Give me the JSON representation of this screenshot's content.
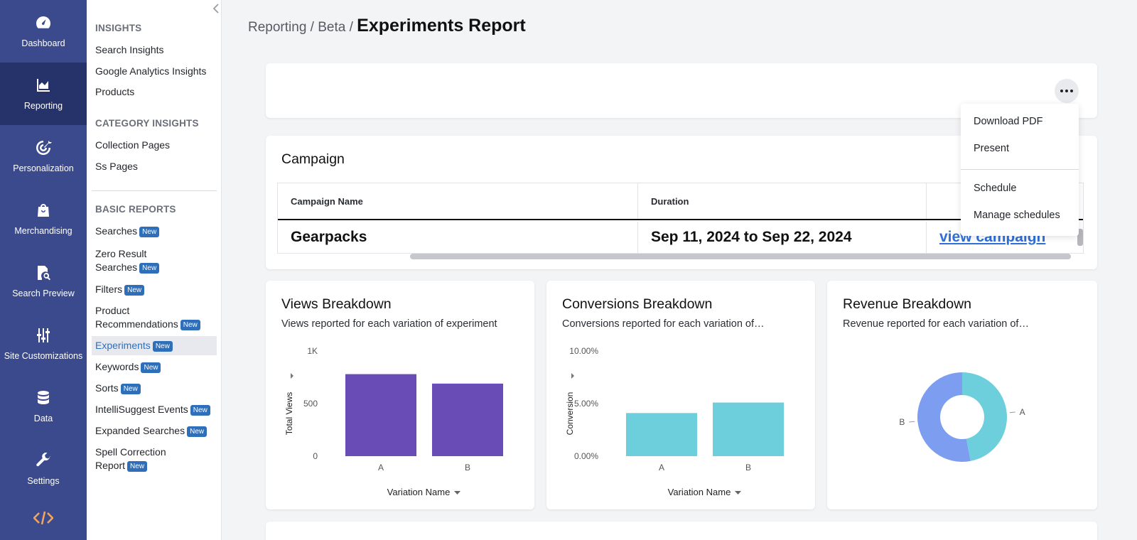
{
  "rail": {
    "items": [
      {
        "label": "Dashboard",
        "icon": "gauge-icon"
      },
      {
        "label": "Reporting",
        "icon": "area-chart-icon",
        "active": true
      },
      {
        "label": "Personalization",
        "icon": "target-icon"
      },
      {
        "label": "Merchandising",
        "icon": "shopping-bag-icon"
      },
      {
        "label": "Search Preview",
        "icon": "document-search-icon"
      },
      {
        "label": "Site Customizations",
        "icon": "sliders-icon"
      },
      {
        "label": "Data",
        "icon": "database-icon"
      },
      {
        "label": "Settings",
        "icon": "wrench-icon"
      }
    ],
    "code_icon": "code-icon"
  },
  "subnav": {
    "sections": [
      {
        "title": "INSIGHTS",
        "items": [
          "Search Insights",
          "Google Analytics Insights",
          "Products"
        ]
      },
      {
        "title": "CATEGORY INSIGHTS",
        "items": [
          "Collection Pages",
          "Ss Pages"
        ]
      },
      {
        "title": "BASIC REPORTS"
      }
    ],
    "reports": [
      {
        "line1": "Searches",
        "badge": "New"
      },
      {
        "line1": "Zero Result",
        "line2": "Searches",
        "badge": "New"
      },
      {
        "line1": "Filters",
        "badge": "New"
      },
      {
        "line1": "Product",
        "line2": "Recommendations",
        "badge": "New"
      },
      {
        "line1": "Experiments",
        "badge": "New",
        "active": true
      },
      {
        "line1": "Keywords",
        "badge": "New"
      },
      {
        "line1": "Sorts",
        "badge": "New"
      },
      {
        "line1": "IntelliSuggest Events",
        "badge": "New"
      },
      {
        "line1": "Expanded Searches",
        "badge": "New"
      },
      {
        "line1": "Spell Correction",
        "line2": "Report",
        "badge": "New"
      }
    ]
  },
  "breadcrumb": {
    "part1": "Reporting",
    "sep": "/",
    "part2": "Beta",
    "current": "Experiments Report"
  },
  "menu": {
    "items": [
      "Download PDF",
      "Present",
      "Schedule",
      "Manage schedules"
    ]
  },
  "campaign": {
    "title": "Campaign",
    "columns": [
      "Campaign Name",
      "Duration"
    ],
    "row": {
      "name": "Gearpacks",
      "duration": "Sep 11, 2024 to Sep 22, 2024",
      "link": "view campaign"
    }
  },
  "charts": {
    "views": {
      "title": "Views Breakdown",
      "subtitle": "Views reported for each variation of experiment"
    },
    "conversions": {
      "title": "Conversions Breakdown",
      "subtitle": "Conversions reported for each variation of…"
    },
    "revenue": {
      "title": "Revenue Breakdown",
      "subtitle": "Revenue reported for each variation of…"
    }
  },
  "chart_data": [
    {
      "type": "bar",
      "title": "Views Breakdown",
      "categories": [
        "A",
        "B"
      ],
      "values": [
        780,
        690
      ],
      "xlabel": "Variation Name",
      "ylabel": "Total Views",
      "ylim": [
        0,
        1000
      ],
      "yticks": [
        "0",
        "500",
        "1K"
      ],
      "ytick_values": [
        0,
        500,
        1000
      ],
      "color": "#6a4cb6"
    },
    {
      "type": "bar",
      "title": "Conversions Breakdown",
      "categories": [
        "A",
        "B"
      ],
      "values": [
        4.1,
        5.1
      ],
      "xlabel": "Variation Name",
      "ylabel": "Conversion",
      "ylim": [
        0,
        10
      ],
      "yticks": [
        "0.00%",
        "5.00%",
        "10.00%"
      ],
      "ytick_values": [
        0,
        5,
        10
      ],
      "color": "#6ecfdc"
    },
    {
      "type": "pie",
      "title": "Revenue Breakdown",
      "labels": [
        "A",
        "B"
      ],
      "values": [
        47,
        53
      ],
      "colors": [
        "#6ecfdc",
        "#7d9ef0"
      ]
    }
  ]
}
